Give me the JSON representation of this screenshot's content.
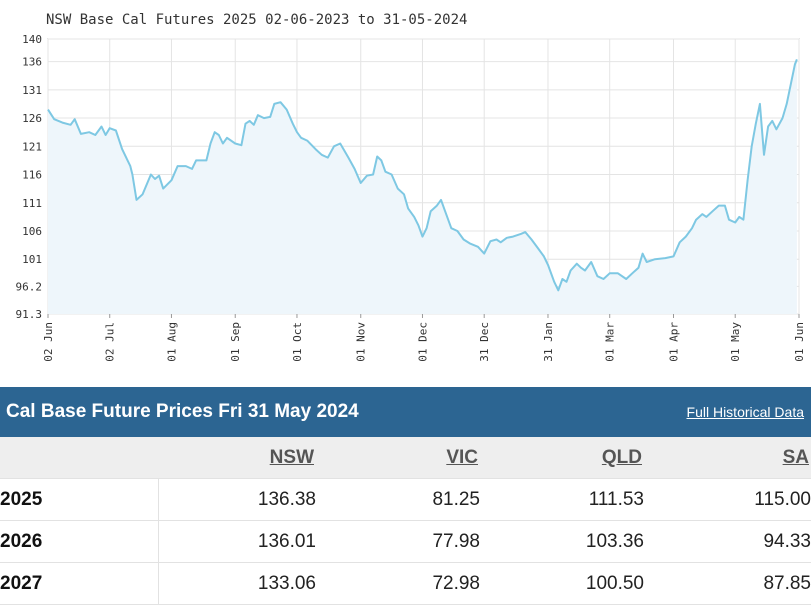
{
  "chart_data": {
    "type": "area",
    "title": "NSW Base Cal Futures 2025 02-06-2023 to 31-05-2024",
    "xlabel": "",
    "ylabel": "",
    "ylim": [
      91.3,
      140
    ],
    "ytick_labels": [
      "140",
      "136",
      "131",
      "126",
      "121",
      "116",
      "111",
      "106",
      "101",
      "96.2",
      "91.3"
    ],
    "ytick_values": [
      140,
      136,
      131,
      126,
      121,
      116,
      111,
      106,
      101,
      96.2,
      91.3
    ],
    "x_range": [
      "2023-06-02",
      "2024-06-01"
    ],
    "xtick_labels": [
      "02 Jun",
      "02 Jul",
      "01 Aug",
      "01 Sep",
      "01 Oct",
      "01 Nov",
      "01 Dec",
      "31 Dec",
      "31 Jan",
      "01 Mar",
      "01 Apr",
      "01 May",
      "01 Jun"
    ],
    "xtick_dates": [
      "2023-06-02",
      "2023-07-02",
      "2023-08-01",
      "2023-09-01",
      "2023-10-01",
      "2023-11-01",
      "2023-12-01",
      "2023-12-31",
      "2024-01-31",
      "2024-03-01",
      "2024-04-01",
      "2024-05-01",
      "2024-06-01"
    ],
    "grid": true,
    "series": [
      {
        "color": "#7ec8e3",
        "fill": "#eef6fb",
        "points": [
          [
            "2023-06-02",
            127.5
          ],
          [
            "2023-06-05",
            125.8
          ],
          [
            "2023-06-09",
            125.2
          ],
          [
            "2023-06-13",
            124.8
          ],
          [
            "2023-06-15",
            125.8
          ],
          [
            "2023-06-18",
            123.2
          ],
          [
            "2023-06-22",
            123.5
          ],
          [
            "2023-06-25",
            123.0
          ],
          [
            "2023-06-28",
            124.5
          ],
          [
            "2023-06-30",
            123.0
          ],
          [
            "2023-07-02",
            124.2
          ],
          [
            "2023-07-05",
            123.8
          ],
          [
            "2023-07-08",
            120.5
          ],
          [
            "2023-07-12",
            117.5
          ],
          [
            "2023-07-13",
            116.0
          ],
          [
            "2023-07-15",
            111.5
          ],
          [
            "2023-07-18",
            112.5
          ],
          [
            "2023-07-22",
            116.0
          ],
          [
            "2023-07-24",
            115.2
          ],
          [
            "2023-07-26",
            115.8
          ],
          [
            "2023-07-28",
            113.5
          ],
          [
            "2023-08-01",
            115.0
          ],
          [
            "2023-08-04",
            117.5
          ],
          [
            "2023-08-08",
            117.5
          ],
          [
            "2023-08-11",
            117.0
          ],
          [
            "2023-08-13",
            118.5
          ],
          [
            "2023-08-18",
            118.5
          ],
          [
            "2023-08-20",
            121.5
          ],
          [
            "2023-08-22",
            123.5
          ],
          [
            "2023-08-24",
            123.0
          ],
          [
            "2023-08-26",
            121.5
          ],
          [
            "2023-08-28",
            122.5
          ],
          [
            "2023-09-01",
            121.5
          ],
          [
            "2023-09-04",
            121.2
          ],
          [
            "2023-09-06",
            125.0
          ],
          [
            "2023-09-08",
            125.5
          ],
          [
            "2023-09-10",
            124.8
          ],
          [
            "2023-09-12",
            126.5
          ],
          [
            "2023-09-15",
            126.0
          ],
          [
            "2023-09-18",
            126.2
          ],
          [
            "2023-09-20",
            128.5
          ],
          [
            "2023-09-23",
            128.8
          ],
          [
            "2023-09-26",
            127.5
          ],
          [
            "2023-09-29",
            125.0
          ],
          [
            "2023-10-01",
            123.5
          ],
          [
            "2023-10-03",
            122.5
          ],
          [
            "2023-10-06",
            122.0
          ],
          [
            "2023-10-10",
            120.5
          ],
          [
            "2023-10-13",
            119.5
          ],
          [
            "2023-10-16",
            119.0
          ],
          [
            "2023-10-19",
            121.0
          ],
          [
            "2023-10-22",
            121.5
          ],
          [
            "2023-10-26",
            119.0
          ],
          [
            "2023-10-29",
            117.0
          ],
          [
            "2023-11-01",
            114.5
          ],
          [
            "2023-11-04",
            115.8
          ],
          [
            "2023-11-07",
            116.0
          ],
          [
            "2023-11-09",
            119.2
          ],
          [
            "2023-11-11",
            118.5
          ],
          [
            "2023-11-13",
            116.5
          ],
          [
            "2023-11-16",
            116.0
          ],
          [
            "2023-11-19",
            113.5
          ],
          [
            "2023-11-22",
            112.5
          ],
          [
            "2023-11-24",
            110.0
          ],
          [
            "2023-11-27",
            108.5
          ],
          [
            "2023-11-29",
            107.0
          ],
          [
            "2023-12-01",
            105.0
          ],
          [
            "2023-12-03",
            106.5
          ],
          [
            "2023-12-05",
            109.5
          ],
          [
            "2023-12-08",
            110.5
          ],
          [
            "2023-12-10",
            111.5
          ],
          [
            "2023-12-12",
            109.5
          ],
          [
            "2023-12-15",
            106.5
          ],
          [
            "2023-12-18",
            106.0
          ],
          [
            "2023-12-21",
            104.5
          ],
          [
            "2023-12-24",
            103.8
          ],
          [
            "2023-12-28",
            103.2
          ],
          [
            "2023-12-31",
            102.0
          ],
          [
            "2024-01-03",
            104.2
          ],
          [
            "2024-01-06",
            104.5
          ],
          [
            "2024-01-08",
            104.0
          ],
          [
            "2024-01-11",
            104.8
          ],
          [
            "2024-01-14",
            105.0
          ],
          [
            "2024-01-18",
            105.5
          ],
          [
            "2024-01-20",
            105.8
          ],
          [
            "2024-01-23",
            104.5
          ],
          [
            "2024-01-26",
            103.0
          ],
          [
            "2024-01-29",
            101.5
          ],
          [
            "2024-01-31",
            100.0
          ],
          [
            "2024-02-03",
            97.0
          ],
          [
            "2024-02-05",
            95.5
          ],
          [
            "2024-02-07",
            97.5
          ],
          [
            "2024-02-09",
            97.0
          ],
          [
            "2024-02-11",
            99.0
          ],
          [
            "2024-02-14",
            100.2
          ],
          [
            "2024-02-16",
            99.5
          ],
          [
            "2024-02-18",
            99.0
          ],
          [
            "2024-02-21",
            100.5
          ],
          [
            "2024-02-24",
            98.0
          ],
          [
            "2024-02-27",
            97.5
          ],
          [
            "2024-03-01",
            98.5
          ],
          [
            "2024-03-05",
            98.5
          ],
          [
            "2024-03-09",
            97.5
          ],
          [
            "2024-03-12",
            98.5
          ],
          [
            "2024-03-15",
            99.5
          ],
          [
            "2024-03-17",
            102.0
          ],
          [
            "2024-03-19",
            100.5
          ],
          [
            "2024-03-23",
            101.0
          ],
          [
            "2024-03-28",
            101.2
          ],
          [
            "2024-04-01",
            101.5
          ],
          [
            "2024-04-04",
            104.0
          ],
          [
            "2024-04-07",
            105.0
          ],
          [
            "2024-04-10",
            106.5
          ],
          [
            "2024-04-12",
            108.0
          ],
          [
            "2024-04-15",
            109.0
          ],
          [
            "2024-04-17",
            108.5
          ],
          [
            "2024-04-20",
            109.5
          ],
          [
            "2024-04-23",
            110.5
          ],
          [
            "2024-04-26",
            110.5
          ],
          [
            "2024-04-28",
            108.0
          ],
          [
            "2024-05-01",
            107.5
          ],
          [
            "2024-05-03",
            108.5
          ],
          [
            "2024-05-05",
            108.0
          ],
          [
            "2024-05-07",
            115.0
          ],
          [
            "2024-05-09",
            121.0
          ],
          [
            "2024-05-11",
            125.0
          ],
          [
            "2024-05-13",
            128.5
          ],
          [
            "2024-05-15",
            119.5
          ],
          [
            "2024-05-17",
            124.5
          ],
          [
            "2024-05-19",
            125.5
          ],
          [
            "2024-05-21",
            124.0
          ],
          [
            "2024-05-24",
            126.0
          ],
          [
            "2024-05-26",
            128.5
          ],
          [
            "2024-05-28",
            132.0
          ],
          [
            "2024-05-30",
            135.5
          ],
          [
            "2024-05-31",
            136.38
          ]
        ]
      }
    ]
  },
  "prices_panel": {
    "title": "Cal Base Future Prices Fri 31 May 2024",
    "link_label": "Full Historical Data",
    "header_color": "#2c6592",
    "columns": [
      "NSW",
      "VIC",
      "QLD",
      "SA"
    ],
    "rows": [
      {
        "year": "2025",
        "values": [
          "136.38",
          "81.25",
          "111.53",
          "115.00"
        ]
      },
      {
        "year": "2026",
        "values": [
          "136.01",
          "77.98",
          "103.36",
          "94.33"
        ]
      },
      {
        "year": "2027",
        "values": [
          "133.06",
          "72.98",
          "100.50",
          "87.85"
        ]
      }
    ]
  }
}
